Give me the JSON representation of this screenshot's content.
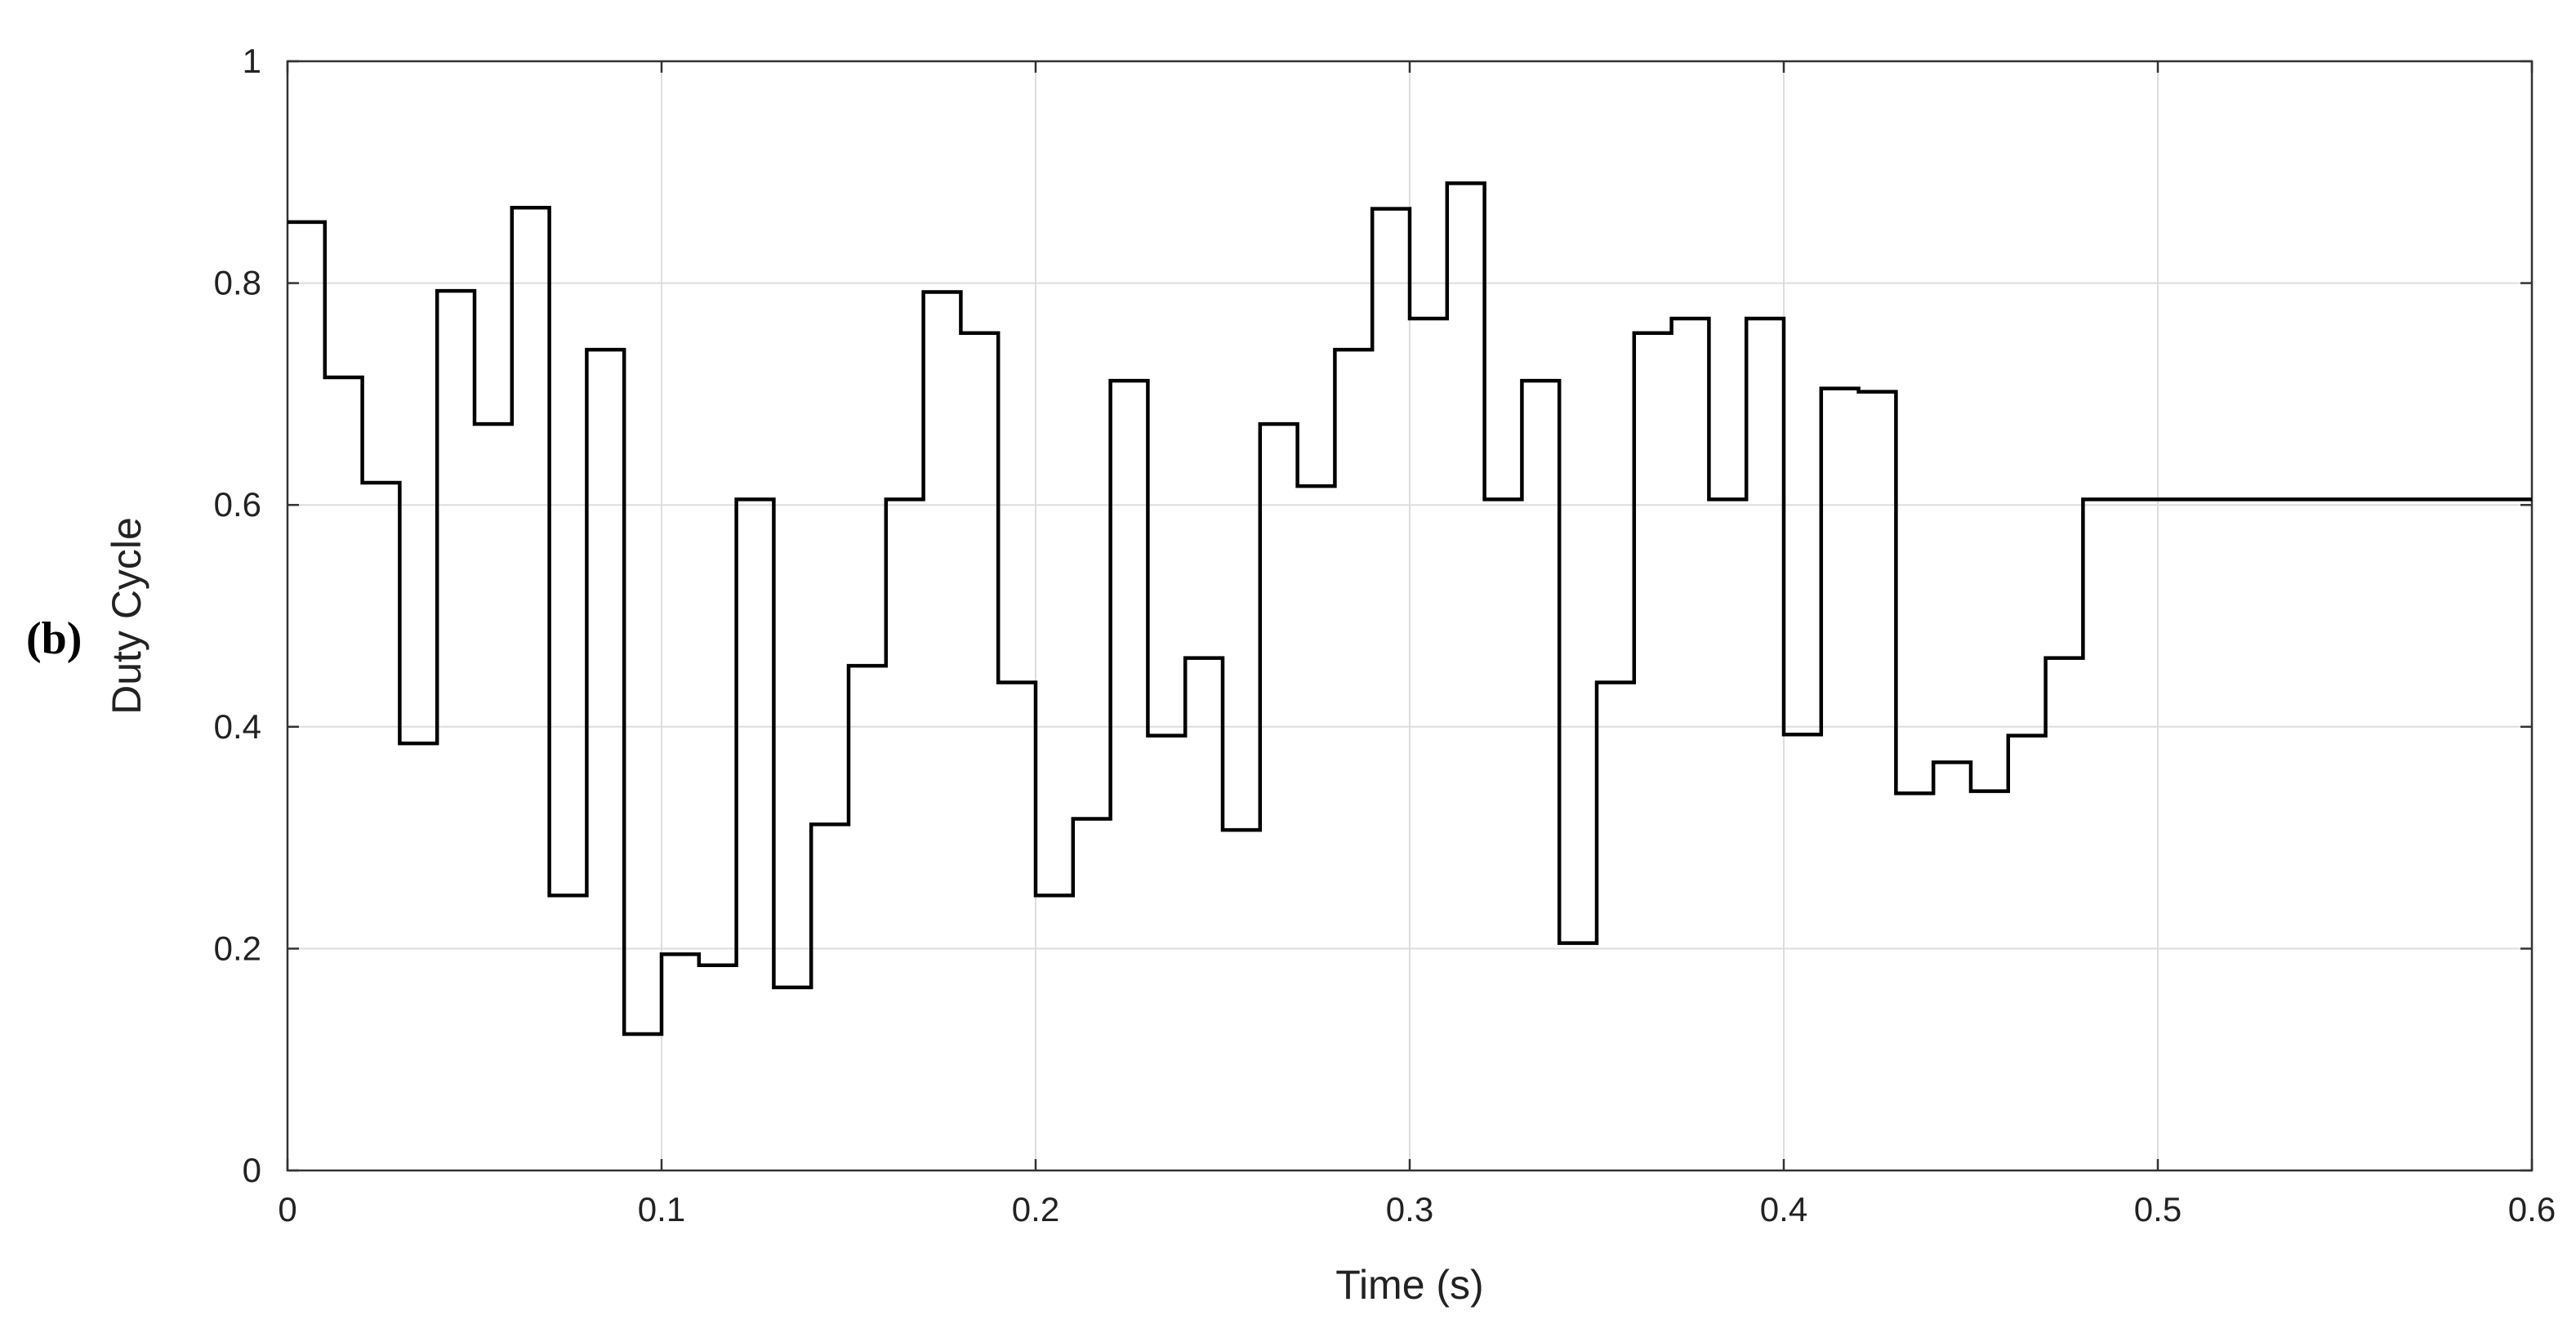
{
  "panel_label": "(b)",
  "colors": {
    "line": "#000000",
    "grid": "#dddddd",
    "axes": "#333333",
    "background": "#ffffff"
  },
  "chart_data": {
    "type": "line",
    "step": true,
    "title": "",
    "xlabel": "Time (s)",
    "ylabel": "Duty Cycle",
    "xlim": [
      0,
      0.6
    ],
    "ylim": [
      0,
      1
    ],
    "xticks": [
      0,
      0.1,
      0.2,
      0.3,
      0.4,
      0.5,
      0.6
    ],
    "xtick_labels": [
      "0",
      "0.1",
      "0.2",
      "0.3",
      "0.4",
      "0.5",
      "0.6"
    ],
    "yticks": [
      0,
      0.2,
      0.4,
      0.6,
      0.8,
      1
    ],
    "ytick_labels": [
      "0",
      "0.2",
      "0.4",
      "0.6",
      "0.8",
      "1"
    ],
    "grid": true,
    "series": [
      {
        "x": [
          0,
          0.01,
          0.02,
          0.03,
          0.04,
          0.05,
          0.06,
          0.07,
          0.08,
          0.09,
          0.1,
          0.11,
          0.12,
          0.13,
          0.14,
          0.15,
          0.16,
          0.17,
          0.18,
          0.19,
          0.2,
          0.21,
          0.22,
          0.23,
          0.24,
          0.25,
          0.26,
          0.27,
          0.28,
          0.29,
          0.3,
          0.31,
          0.32,
          0.33,
          0.34,
          0.35,
          0.36,
          0.37,
          0.38,
          0.39,
          0.4,
          0.41,
          0.42,
          0.43,
          0.44,
          0.45,
          0.46,
          0.47,
          0.48,
          0.6
        ],
        "y": [
          0.855,
          0.715,
          0.62,
          0.385,
          0.793,
          0.673,
          0.868,
          0.248,
          0.74,
          0.123,
          0.195,
          0.185,
          0.605,
          0.165,
          0.312,
          0.455,
          0.605,
          0.792,
          0.755,
          0.44,
          0.248,
          0.317,
          0.712,
          0.392,
          0.462,
          0.307,
          0.673,
          0.617,
          0.74,
          0.867,
          0.768,
          0.89,
          0.605,
          0.712,
          0.205,
          0.44,
          0.755,
          0.768,
          0.605,
          0.768,
          0.393,
          0.705,
          0.702,
          0.34,
          0.368,
          0.342,
          0.392,
          0.462,
          0.605,
          0.605
        ]
      }
    ]
  }
}
